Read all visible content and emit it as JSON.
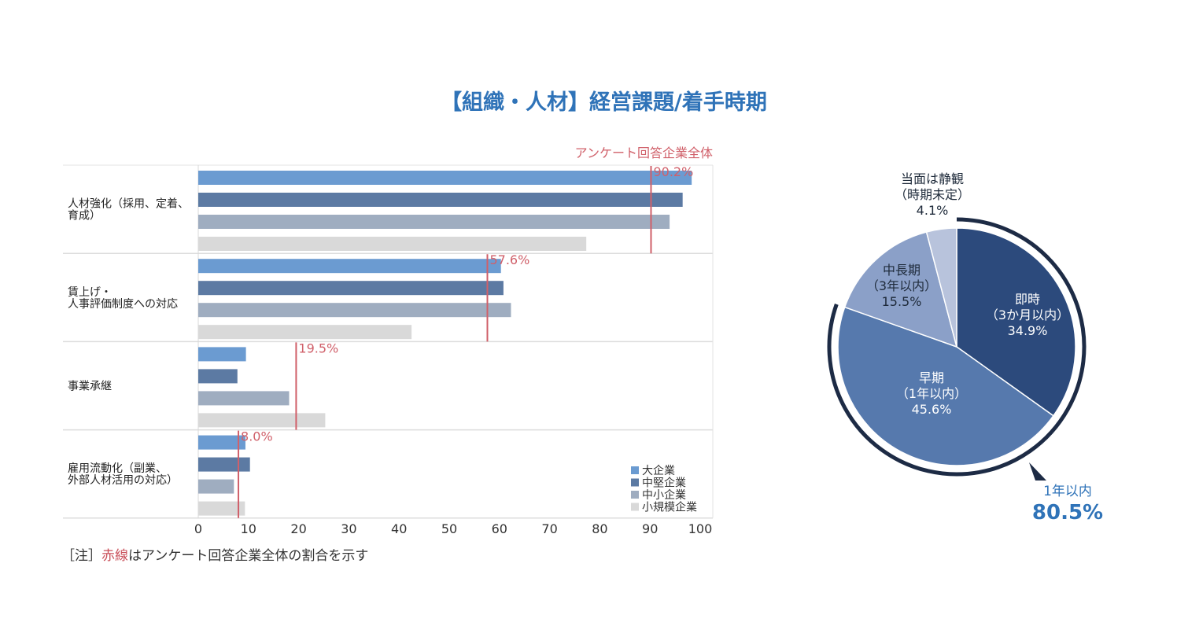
{
  "title": "【組織・人材】経営課題/着手時期",
  "note": {
    "prefix": "［注］",
    "red": "赤線",
    "suffix": "はアンケート回答企業全体の割合を示す"
  },
  "colors": {
    "title": "#2f73b8",
    "red_line": "#d0606a",
    "large": "#6b9bd1",
    "mid": "#5c7aa3",
    "small": "#9fadc0",
    "micro": "#d9d9d9"
  },
  "chart_data": [
    {
      "type": "bar",
      "orientation": "horizontal",
      "categories": [
        [
          "人材強化（採用、定着、",
          "育成）"
        ],
        [
          "賃上げ・",
          "人事評価制度への対応"
        ],
        [
          "事業承継"
        ],
        [
          "雇用流動化（副業、",
          "外部人材活用の対応）"
        ]
      ],
      "series": [
        {
          "name": "大企業",
          "values": [
            98.3,
            60.3,
            9.5,
            9.4
          ]
        },
        {
          "name": "中堅企業",
          "values": [
            96.5,
            60.8,
            7.8,
            10.3
          ]
        },
        {
          "name": "中小企業",
          "values": [
            93.9,
            62.3,
            18.1,
            7.1
          ]
        },
        {
          "name": "小規模企業",
          "values": [
            77.3,
            42.5,
            25.3,
            9.3
          ]
        }
      ],
      "overall_label": "アンケート回答企業全体",
      "overall": [
        90.2,
        57.6,
        19.5,
        8.0
      ],
      "overall_labels": [
        "90.2%",
        "57.6%",
        "19.5%",
        "8.0%"
      ],
      "xlim": [
        0,
        100
      ],
      "xticks": [
        "0",
        "10",
        "20",
        "30",
        "40",
        "50",
        "60",
        "70",
        "80",
        "90",
        "100"
      ],
      "legend_position": "bottom-right"
    },
    {
      "type": "pie",
      "slices": [
        {
          "label": [
            "即時",
            "（3か月以内）",
            "34.9%"
          ],
          "value": 34.9,
          "color": "#2c4a7c",
          "text_color": "#ffffff"
        },
        {
          "label": [
            "早期",
            "（1年以内）",
            "45.6%"
          ],
          "value": 45.6,
          "color": "#5679ad",
          "text_color": "#ffffff"
        },
        {
          "label": [
            "中長期",
            "（3年以内）",
            "15.5%"
          ],
          "value": 15.5,
          "color": "#8ba0c8",
          "text_color": "#1e2a3a"
        },
        {
          "label": [
            "当面は静観",
            "（時期未定）",
            "4.1%"
          ],
          "value": 4.1,
          "color": "#b8c3dc",
          "text_color": "#1e2a3a"
        }
      ],
      "bracket": {
        "label": "1年以内",
        "value": "80.5%"
      }
    }
  ]
}
